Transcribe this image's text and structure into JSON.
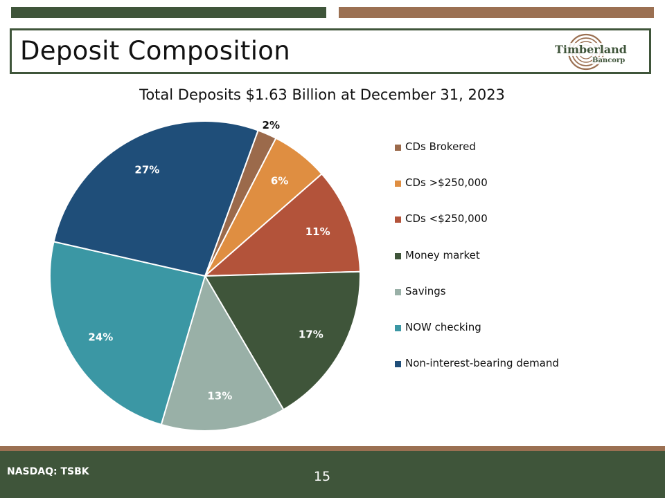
{
  "slide": {
    "title": "Deposit Composition",
    "logo": {
      "name": "Timberland",
      "sub": "Bancorp"
    },
    "footer": {
      "ticker": "NASDAQ: TSBK",
      "page_number": "15"
    }
  },
  "colors": {
    "dark_green": "#3f553a",
    "brown": "#9b7052"
  },
  "chart_data": {
    "type": "pie",
    "title": "Total Deposits $1.63 Billion at December 31, 2023",
    "legend_placement": "right",
    "slices": [
      {
        "name": "CDs Brokered",
        "value": 2,
        "label": "2%",
        "color": "#9b6a4b"
      },
      {
        "name": "CDs >$250,000",
        "value": 6,
        "label": "6%",
        "color": "#df8e41"
      },
      {
        "name": "CDs <$250,000",
        "value": 11,
        "label": "11%",
        "color": "#b3533a"
      },
      {
        "name": "Money market",
        "value": 17,
        "label": "17%",
        "color": "#3f553a"
      },
      {
        "name": "Savings",
        "value": 13,
        "label": "13%",
        "color": "#99b0a7"
      },
      {
        "name": "NOW checking",
        "value": 24,
        "label": "24%",
        "color": "#3b97a4"
      },
      {
        "name": "Non-interest-bearing demand",
        "value": 27,
        "label": "27%",
        "color": "#1f4e79"
      }
    ]
  }
}
